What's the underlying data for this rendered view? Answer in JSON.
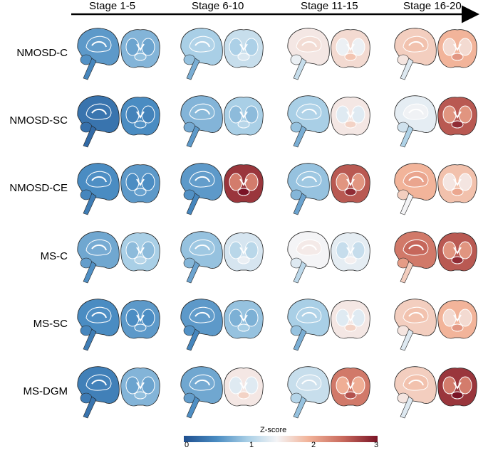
{
  "stages": [
    "Stage 1-5",
    "Stage 6-10",
    "Stage 11-15",
    "Stage 16-20"
  ],
  "rows": [
    "NMOSD-C",
    "NMOSD-SC",
    "NMOSD-CE",
    "MS-C",
    "MS-SC",
    "MS-DGM"
  ],
  "colorbar": {
    "title": "Z-score",
    "ticks": [
      "0",
      "1",
      "2",
      "3"
    ],
    "colors": [
      "#1f4f8f",
      "#4a8cc2",
      "#a9cfe6",
      "#f4f4f6",
      "#f2b49a",
      "#c96a5d",
      "#7a1426"
    ]
  },
  "levels": [
    [
      [
        0.6,
        0.8
      ],
      [
        1.0,
        1.2
      ],
      [
        1.6,
        1.7
      ],
      [
        1.8,
        2.0
      ]
    ],
    [
      [
        0.3,
        0.5
      ],
      [
        0.8,
        1.0
      ],
      [
        1.0,
        1.6
      ],
      [
        1.4,
        2.6
      ]
    ],
    [
      [
        0.5,
        0.6
      ],
      [
        0.6,
        2.8
      ],
      [
        0.9,
        2.6
      ],
      [
        2.0,
        1.9
      ]
    ],
    [
      [
        0.7,
        1.0
      ],
      [
        0.9,
        1.3
      ],
      [
        1.5,
        1.4
      ],
      [
        2.4,
        2.6
      ]
    ],
    [
      [
        0.5,
        0.6
      ],
      [
        0.6,
        0.9
      ],
      [
        1.0,
        1.6
      ],
      [
        1.8,
        2.0
      ]
    ],
    [
      [
        0.4,
        0.8
      ],
      [
        0.7,
        1.6
      ],
      [
        1.2,
        2.4
      ],
      [
        1.8,
        2.8
      ]
    ]
  ]
}
